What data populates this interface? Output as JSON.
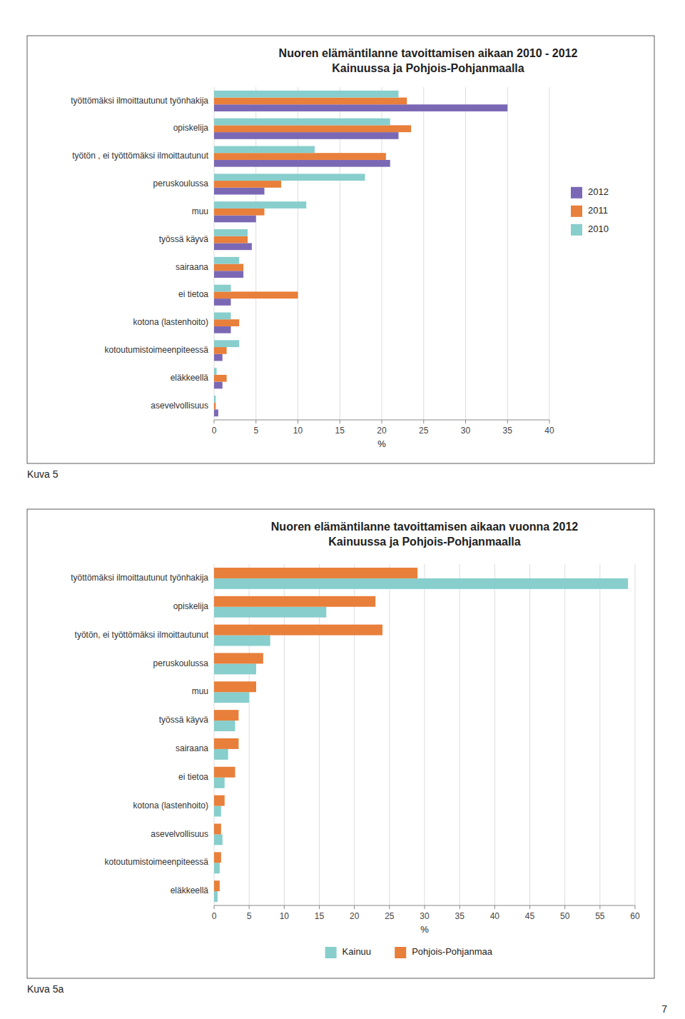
{
  "chart_data": [
    {
      "type": "bar",
      "orientation": "horizontal",
      "title": "Nuoren elämäntilanne tavoittamisen aikaan 2010 - 2012",
      "subtitle": "Kainuussa ja Pohjois-Pohjanmaalla",
      "categories": [
        "työttömäksi ilmoittautunut työnhakija",
        "opiskelija",
        "työtön , ei työttömäksi ilmoittautunut",
        "peruskoulussa",
        "muu",
        "työssä käyvä",
        "sairaana",
        "ei tietoa",
        "kotona (lastenhoito)",
        "kotoutumistoimeenpiteessä",
        "eläkkeellä",
        "asevelvollisuus"
      ],
      "series": [
        {
          "name": "2012",
          "color": "#7B68B5",
          "values": [
            35,
            22,
            21,
            6,
            5,
            4.5,
            3.5,
            2,
            2,
            1,
            1,
            0.5
          ]
        },
        {
          "name": "2011",
          "color": "#E87F3A",
          "values": [
            23,
            23.5,
            20.5,
            8,
            6,
            4,
            3.5,
            10,
            3,
            1.5,
            1.5,
            0.2
          ]
        },
        {
          "name": "2010",
          "color": "#87CECC",
          "values": [
            22,
            21,
            12,
            18,
            11,
            4,
            3,
            2,
            2,
            3,
            0.3,
            0.2
          ]
        }
      ],
      "xlim": [
        0,
        40
      ],
      "xticks": [
        0,
        5,
        10,
        15,
        20,
        25,
        30,
        35,
        40
      ],
      "xlabel": "%",
      "grid": true,
      "legend": "right",
      "annotations": [
        "Kuva 5"
      ]
    },
    {
      "type": "bar",
      "orientation": "horizontal",
      "title": "Nuoren elämäntilanne tavoittamisen aikaan vuonna 2012",
      "subtitle": "Kainuussa ja Pohjois-Pohjanmaalla",
      "categories": [
        "työttömäksi ilmoittautunut työnhakija",
        "opiskelija",
        "työtön, ei työttömäksi ilmoittautunut",
        "peruskoulussa",
        "muu",
        "työssä käyvä",
        "sairaana",
        "ei tietoa",
        "kotona (lastenhoito)",
        "asevelvollisuus",
        "kotoutumistoimeenpiteessä",
        "eläkkeellä"
      ],
      "series": [
        {
          "name": "Kainuu",
          "color": "#87CECC",
          "values": [
            59,
            16,
            8,
            6,
            5,
            3,
            2,
            1.5,
            1,
            1.2,
            0.8,
            0.5
          ]
        },
        {
          "name": "Pohjois-Pohjanmaa",
          "color": "#E87F3A",
          "values": [
            29,
            23,
            24,
            7,
            6,
            3.5,
            3.5,
            3,
            1.5,
            1,
            1,
            0.8
          ]
        }
      ],
      "xlim": [
        0,
        60
      ],
      "xticks": [
        0,
        5,
        10,
        15,
        20,
        25,
        30,
        35,
        40,
        45,
        50,
        55,
        60
      ],
      "xlabel": "%",
      "grid": true,
      "legend": "bottom",
      "annotations": [
        "Kuva 5a",
        "7"
      ]
    }
  ]
}
